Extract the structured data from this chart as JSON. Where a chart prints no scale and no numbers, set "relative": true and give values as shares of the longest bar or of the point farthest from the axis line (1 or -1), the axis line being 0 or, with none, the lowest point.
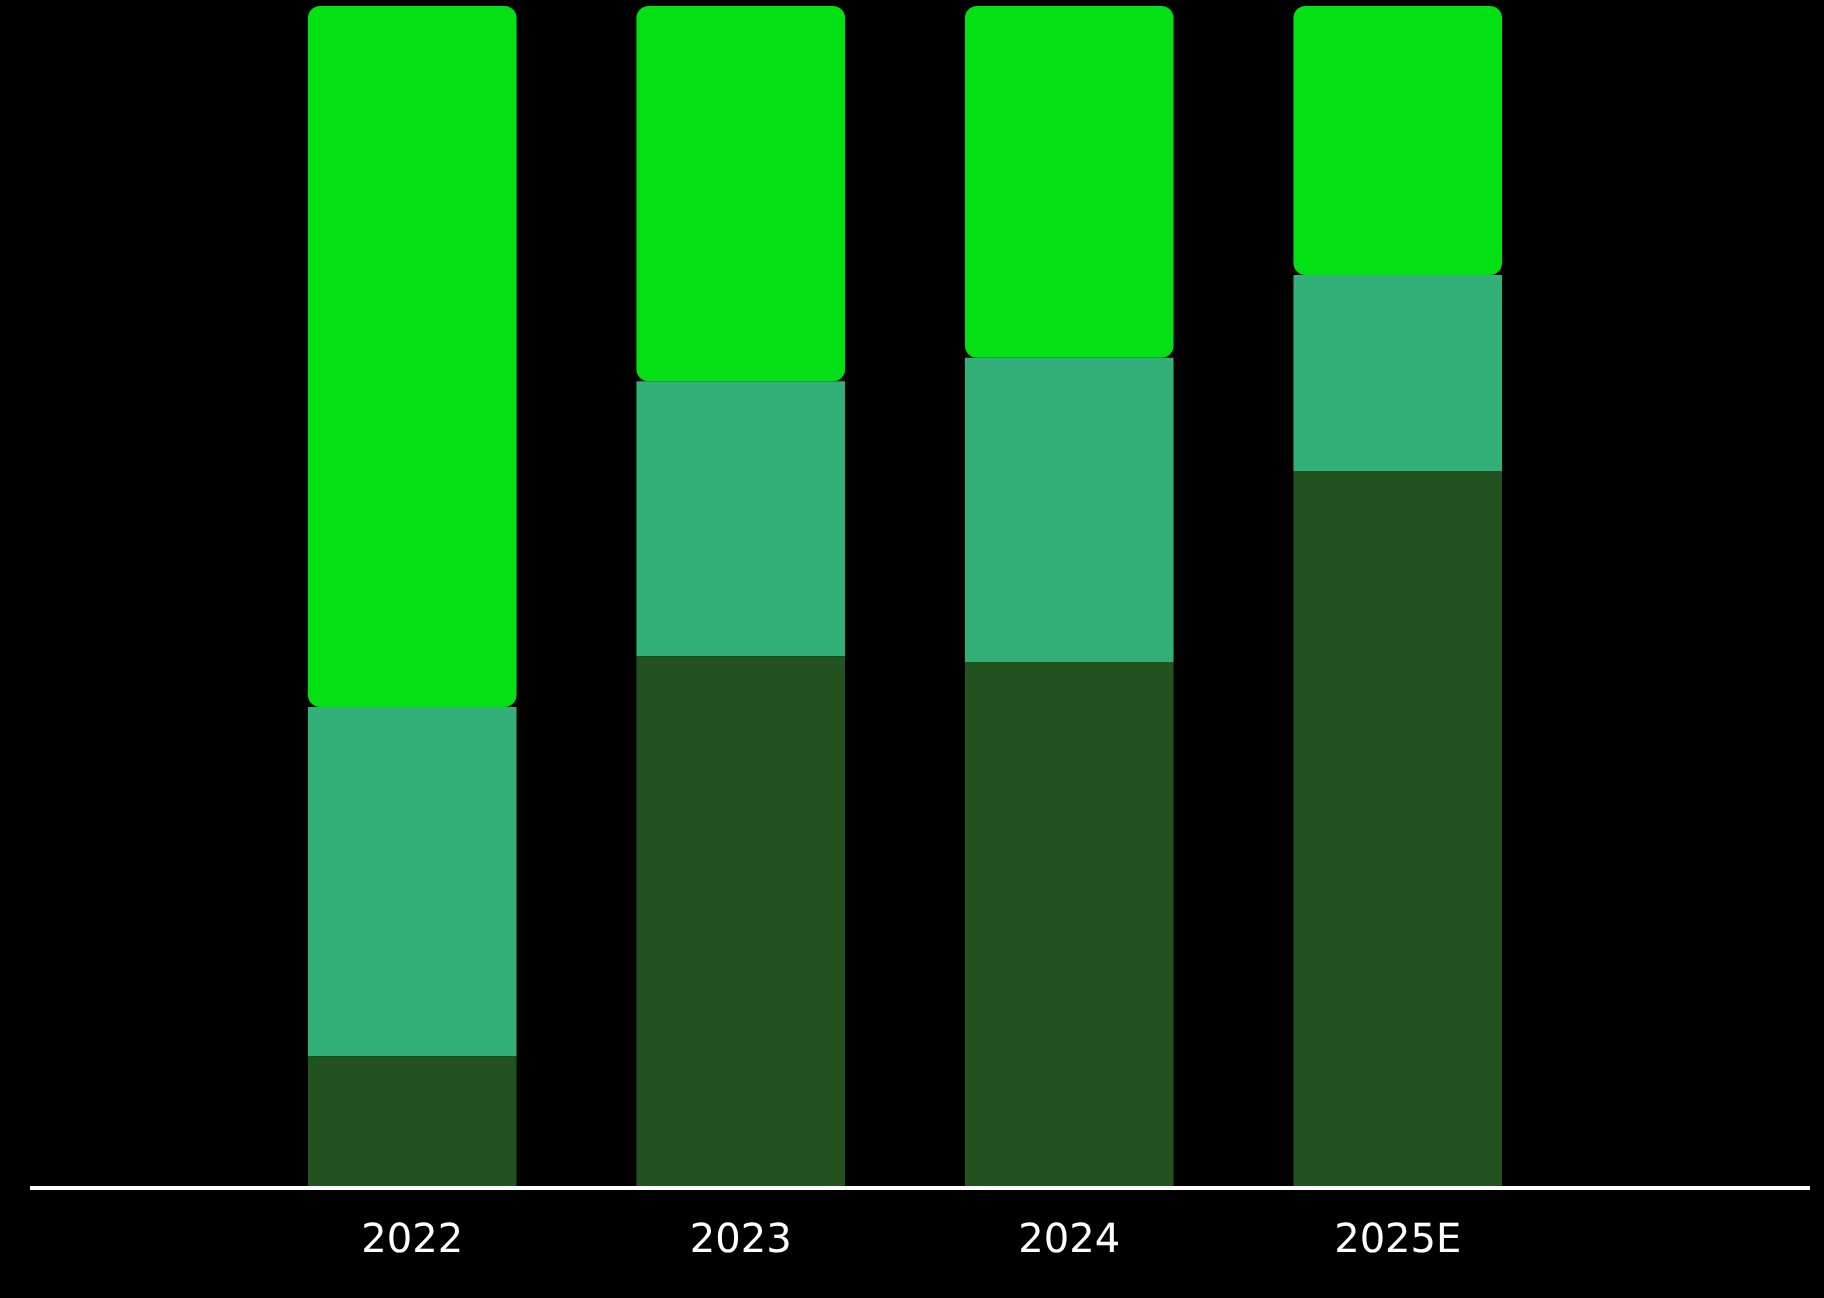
{
  "chart_data": {
    "type": "bar",
    "stacked": true,
    "relative": true,
    "legend": false,
    "categories": [
      "2022",
      "2023",
      "2024",
      "2025E"
    ],
    "series": [
      {
        "color": "#22521d",
        "values": [
          0.11,
          0.449,
          0.444,
          0.606
        ]
      },
      {
        "color": "#33b077",
        "values": [
          0.296,
          0.233,
          0.258,
          0.166
        ]
      },
      {
        "color": "#03e115",
        "values": [
          0.594,
          0.318,
          0.298,
          0.228
        ]
      }
    ]
  }
}
